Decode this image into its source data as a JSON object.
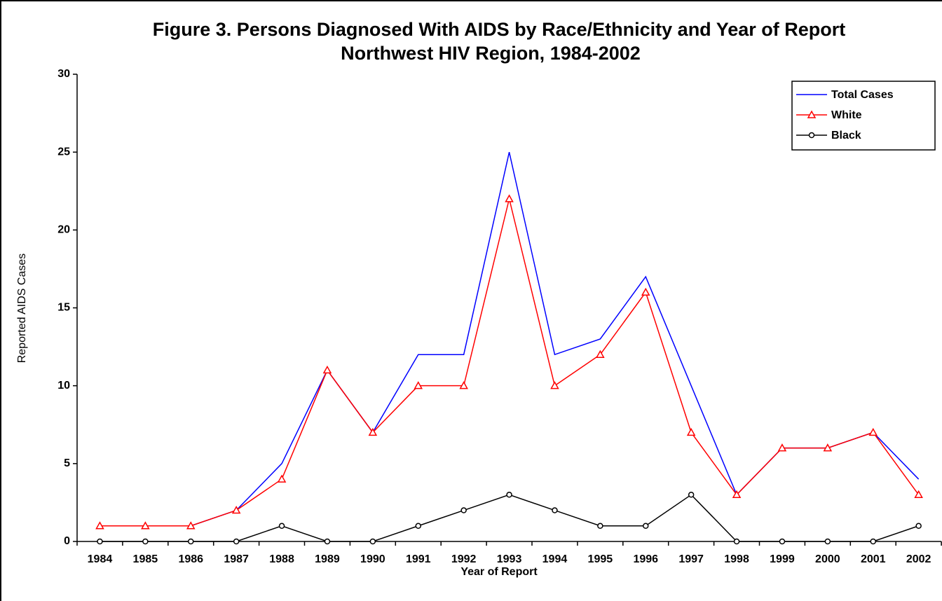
{
  "chart_data": {
    "type": "line",
    "title": "Figure 3.  Persons Diagnosed With AIDS by Race/Ethnicity and Year of Report",
    "subtitle": "Northwest HIV Region, 1984-2002",
    "x_label": "Year of Report",
    "y_label": "Reported AIDS Cases",
    "categories": [
      "1984",
      "1985",
      "1986",
      "1987",
      "1988",
      "1989",
      "1990",
      "1991",
      "1992",
      "1993",
      "1994",
      "1995",
      "1996",
      "1997",
      "1998",
      "1999",
      "2000",
      "2001",
      "2002"
    ],
    "series": [
      {
        "name": "Total Cases",
        "color": "#0000ff",
        "marker": "none",
        "values": [
          1,
          1,
          1,
          2,
          5,
          11,
          7,
          12,
          12,
          25,
          12,
          13,
          17,
          10,
          3,
          6,
          6,
          7,
          4
        ]
      },
      {
        "name": "White",
        "color": "#ff0000",
        "marker": "triangle",
        "values": [
          1,
          1,
          1,
          2,
          4,
          11,
          7,
          10,
          10,
          22,
          10,
          12,
          16,
          7,
          3,
          6,
          6,
          7,
          3
        ]
      },
      {
        "name": "Black",
        "color": "#000000",
        "marker": "circle",
        "values": [
          0,
          0,
          0,
          0,
          1,
          0,
          0,
          1,
          2,
          3,
          2,
          1,
          1,
          3,
          0,
          0,
          0,
          0,
          1
        ]
      }
    ],
    "ylim": [
      0,
      30
    ],
    "yticks": [
      0,
      5,
      10,
      15,
      20,
      25,
      30
    ],
    "grid": false,
    "legend": "top-right"
  }
}
